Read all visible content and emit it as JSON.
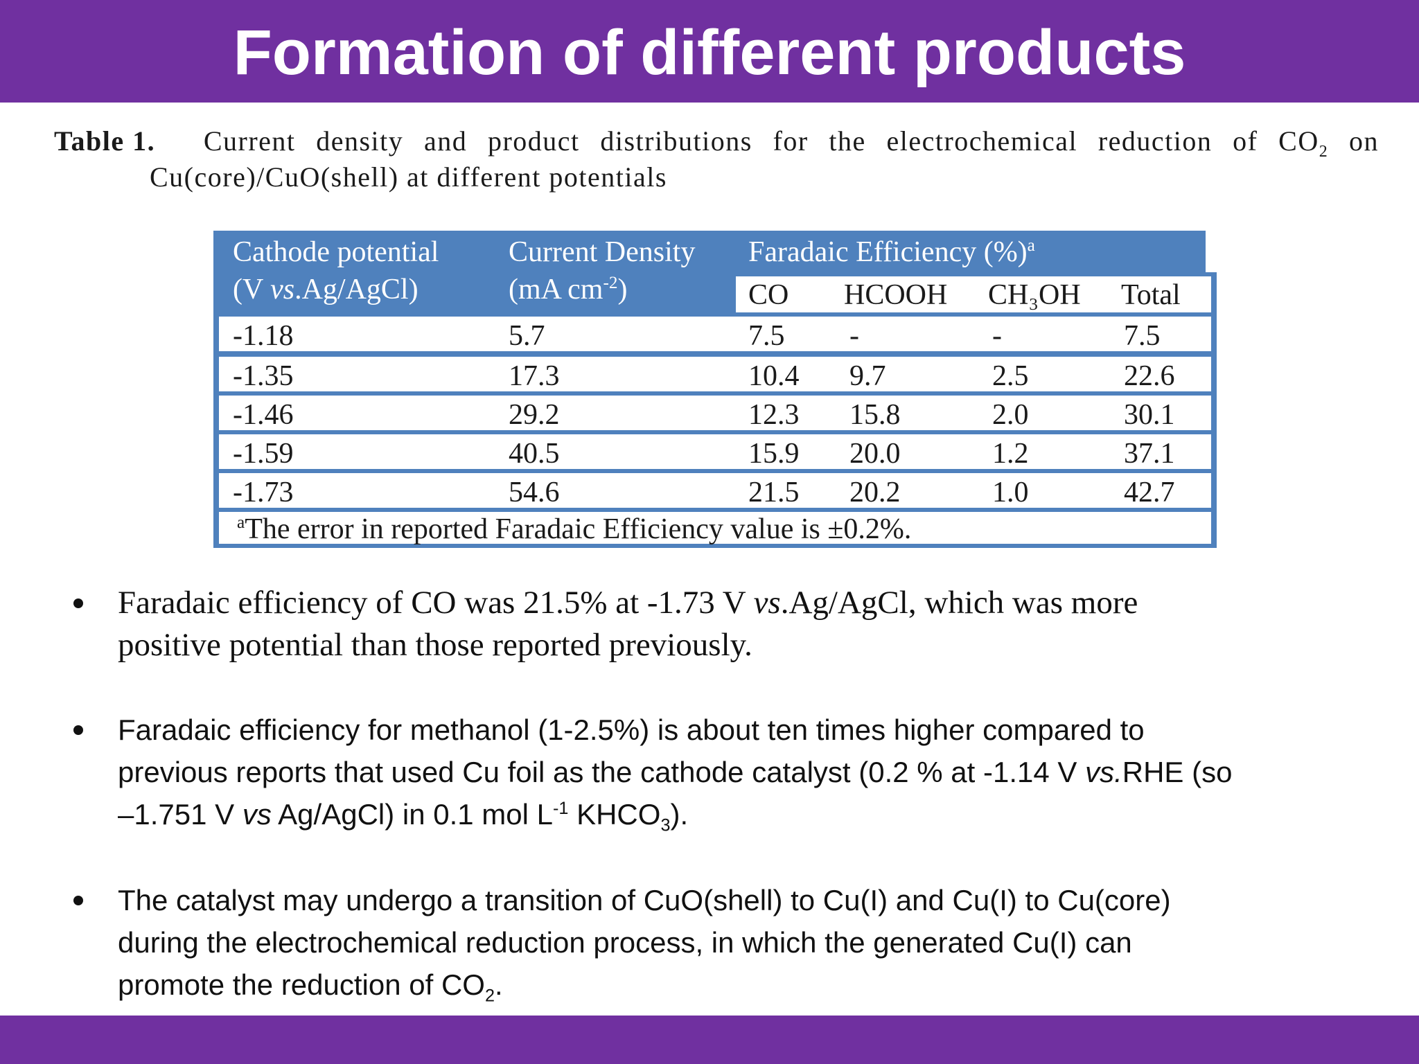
{
  "slide": {
    "title": "Formation of different products"
  },
  "caption": {
    "label": "Table 1.",
    "line1_words": [
      "Current",
      "density",
      "and",
      "product",
      "distributions",
      "for",
      "the",
      "electrochemical",
      "reduction",
      "of",
      "CO",
      "on"
    ],
    "co_subscript": "2",
    "line2": "Cu(core)/CuO(shell) at different potentials"
  },
  "table": {
    "col1_header_line1": "Cathode potential",
    "col1_header_line2_pre": "(V ",
    "col1_header_line2_italic": "vs",
    "col1_header_line2_post": ".Ag/AgCl)",
    "col2_header_line1": "Current Density",
    "col2_header_line2_pre": "(mA cm",
    "col2_header_line2_sup": "-2",
    "col2_header_line2_post": ")",
    "fe_header": "Faradaic Efficiency (%)",
    "fe_header_sup": "a",
    "subheaders": [
      "CO",
      "HCOOH",
      "CH₃OH",
      "Total"
    ],
    "rows": [
      {
        "potential": "-1.18",
        "density": "5.7",
        "co": "7.5",
        "hcooh": "-",
        "ch3oh": "-",
        "total": "7.5"
      },
      {
        "potential": "-1.35",
        "density": "17.3",
        "co": "10.4",
        "hcooh": "9.7",
        "ch3oh": "2.5",
        "total": "22.6"
      },
      {
        "potential": "-1.46",
        "density": "29.2",
        "co": "12.3",
        "hcooh": "15.8",
        "ch3oh": "2.0",
        "total": "30.1"
      },
      {
        "potential": "-1.59",
        "density": "40.5",
        "co": "15.9",
        "hcooh": "20.0",
        "ch3oh": "1.2",
        "total": "37.1"
      },
      {
        "potential": "-1.73",
        "density": "54.6",
        "co": "21.5",
        "hcooh": "20.2",
        "ch3oh": "1.0",
        "total": "42.7"
      }
    ],
    "footnote_mark": "a",
    "footnote": "The error in reported Faradaic Efficiency value is ±0.2%."
  },
  "bullets": {
    "b1_part1": "Faradaic efficiency of CO was 21.5% at -1.73 V ",
    "b1_italic": "vs",
    "b1_part2": ".Ag/AgCl, which was more",
    "b1_line2": "positive potential than those reported previously.",
    "b2_line1": "Faradaic efficiency for methanol (1-2.5%) is about ten times higher compared to",
    "b2_line2_pre": "previous reports that used Cu foil as the cathode catalyst (0.2 % at -1.14 V ",
    "b2_line2_italic": "vs.",
    "b2_line2_post": "RHE (so",
    "b2_line3_pre": "–1.751 V ",
    "b2_line3_italic": "vs",
    "b2_line3_mid": " Ag/AgCl) in 0.1 mol L",
    "b2_line3_sup": "-1",
    "b2_line3_mid2": " KHCO",
    "b2_line3_sub": "3",
    "b2_line3_end": ").",
    "b3_line1": "The catalyst may undergo a transition of CuO(shell) to Cu(I) and Cu(I) to Cu(core)",
    "b3_line2": "during the electrochemical reduction process, in which the generated Cu(I) can",
    "b3_line3_pre": "promote the reduction of CO",
    "b3_line3_sub": "2",
    "b3_line3_end": "."
  },
  "colors": {
    "brand_purple": "#7030a0",
    "table_blue": "#4f81bd"
  }
}
